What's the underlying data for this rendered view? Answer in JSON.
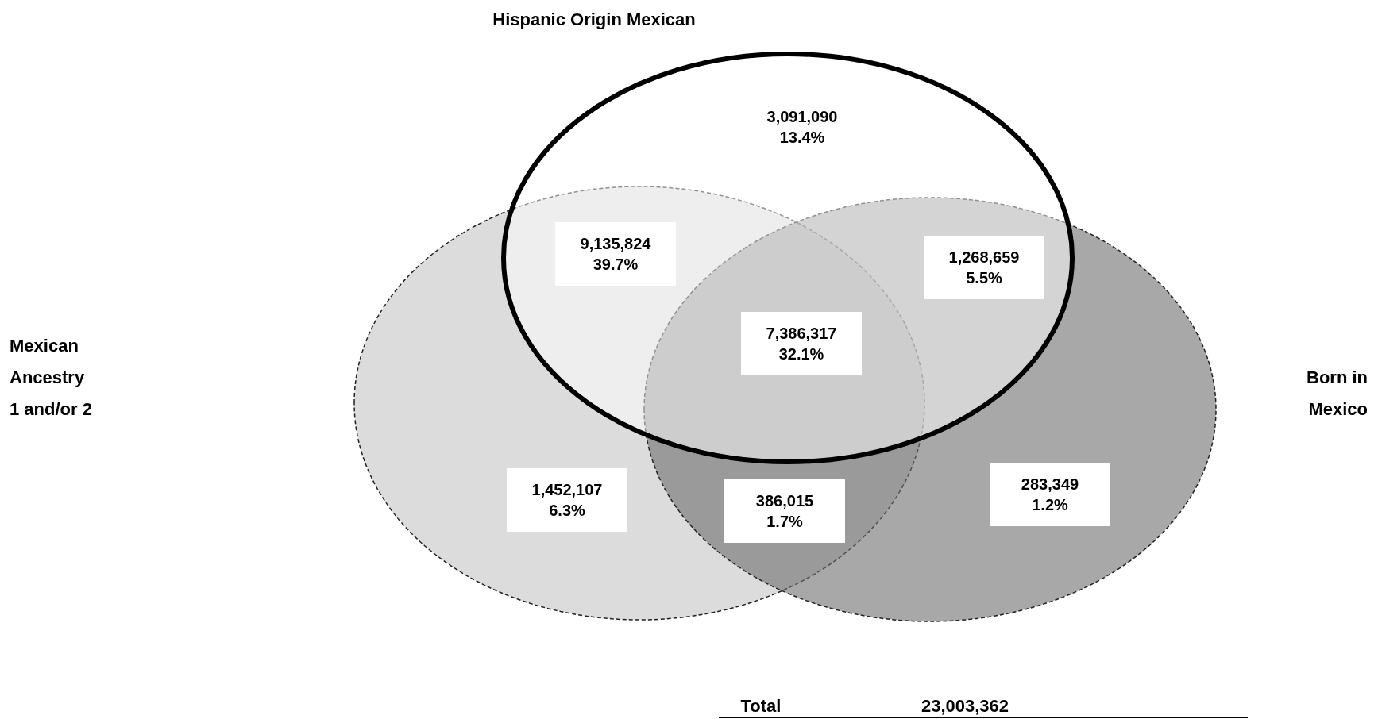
{
  "chart_data": {
    "type": "other",
    "categories": [
      "3,091,090",
      "9,135,824",
      "1,268,659",
      "7,386,317",
      "1,452,107",
      "386,015",
      "283,349"
    ],
    "values": [
      13.4,
      39.7,
      5.5,
      32.1,
      6.3,
      1.7,
      1.2
    ],
    "value_labels": [
      "13.4%",
      "39.7%",
      "5.5%",
      "32.1%",
      "6.3%",
      "1.7%",
      "1.2%"
    ],
    "annotations": [
      "Hispanic Origin Mexican",
      "Mexican\nAncestry\n1 and/or 2",
      "Born in\nMexico",
      "Total",
      "23,003,362"
    ]
  }
}
